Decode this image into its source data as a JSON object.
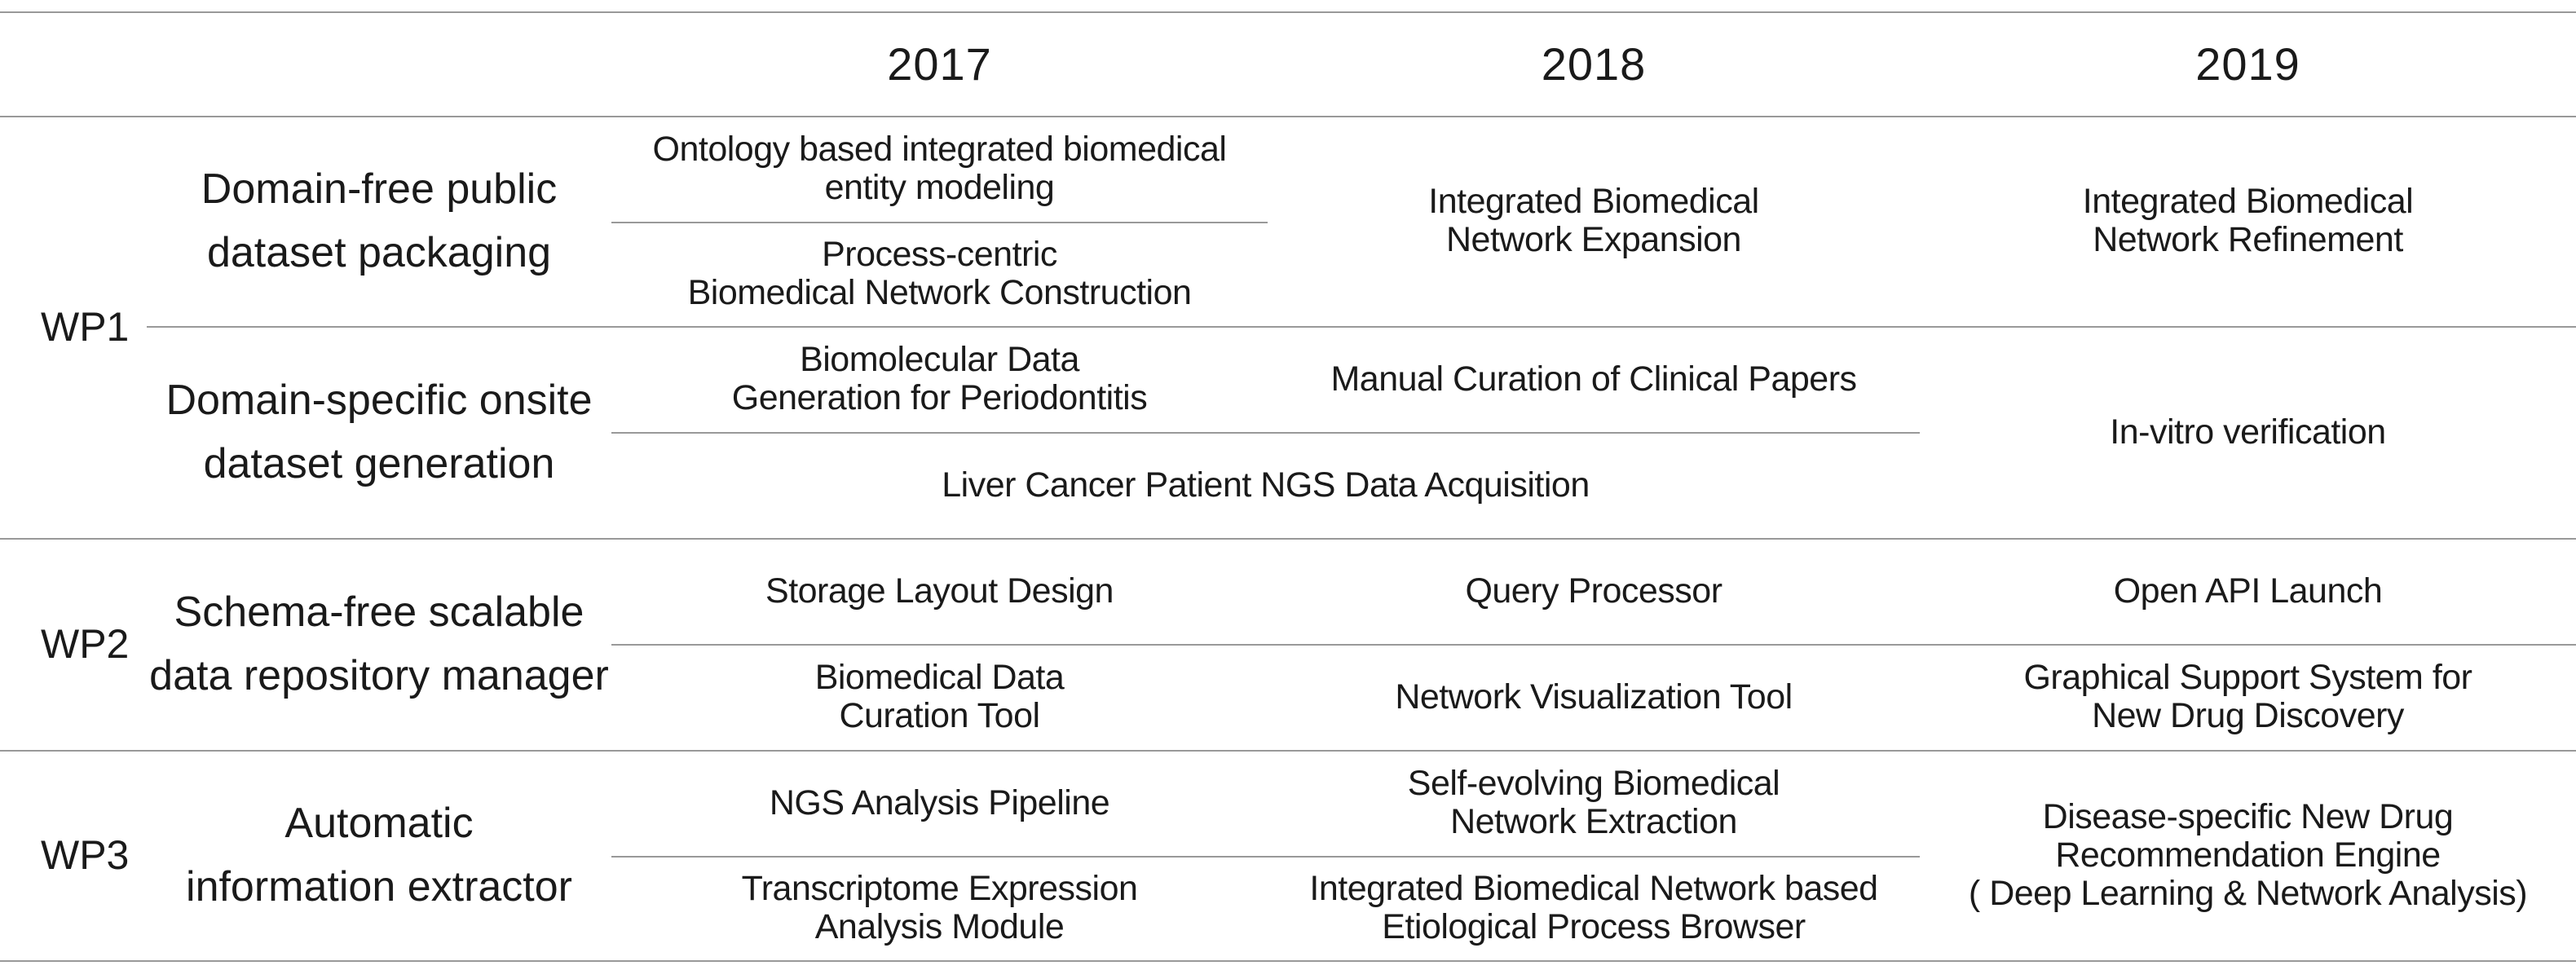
{
  "header": {
    "years": [
      "2017",
      "2018",
      "2019"
    ]
  },
  "wp1": {
    "label": "WP1",
    "categories": [
      "Domain-free public\ndataset packaging",
      "Domain-specific onsite\ndataset generation"
    ],
    "tasks": {
      "ontology": "Ontology based integrated biomedical\nentity modeling",
      "process_centric": "Process-centric\nBiomedical Network Construction",
      "expansion": "Integrated Biomedical\nNetwork Expansion",
      "refinement": "Integrated Biomedical\nNetwork Refinement",
      "biomolecular": "Biomolecular Data\nGeneration for Periodontitis",
      "manual_curation": "Manual Curation of Clinical Papers",
      "invitro": "In-vitro verification",
      "liver": "Liver Cancer Patient NGS Data Acquisition"
    }
  },
  "wp2": {
    "label": "WP2",
    "category": "Schema-free scalable\ndata repository manager",
    "tasks": {
      "storage": "Storage Layout Design",
      "query": "Query Processor",
      "openapi": "Open API Launch",
      "curation_tool": "Biomedical Data\nCuration Tool",
      "visualization": "Network Visualization Tool",
      "graphical": "Graphical Support System for\nNew Drug Discovery"
    }
  },
  "wp3": {
    "label": "WP3",
    "category": "Automatic\ninformation extractor",
    "tasks": {
      "ngs": "NGS Analysis Pipeline",
      "self_evolving": "Self-evolving Biomedical\nNetwork Extraction",
      "drug_engine": "Disease-specific New Drug\nRecommendation Engine\n( Deep Learning & Network Analysis)",
      "transcriptome": "Transcriptome Expression\nAnalysis Module",
      "browser": "Integrated Biomedical Network based\nEtiological Process Browser"
    }
  }
}
